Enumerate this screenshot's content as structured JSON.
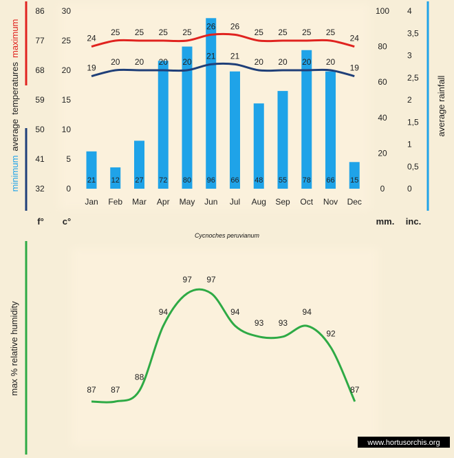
{
  "chart_data": [
    {
      "type": "bar",
      "title": "Cycnoches peruvianum",
      "categories": [
        "Jan",
        "Feb",
        "Mar",
        "Apr",
        "May",
        "Jun",
        "Jul",
        "Aug",
        "Sep",
        "Oct",
        "Nov",
        "Dec"
      ],
      "series": [
        {
          "name": "average rainfall (mm.)",
          "type": "bar",
          "axis": "mm",
          "color": "#1fa3e8",
          "values": [
            21,
            12,
            27,
            72,
            80,
            96,
            66,
            48,
            55,
            78,
            66,
            15
          ]
        },
        {
          "name": "maximum average temperatures (c°)",
          "type": "line",
          "axis": "c",
          "color": "#e0231f",
          "values": [
            24,
            25,
            25,
            25,
            25,
            26,
            26,
            25,
            25,
            25,
            25,
            24
          ]
        },
        {
          "name": "minimum average temperatures (c°)",
          "type": "line",
          "axis": "c",
          "color": "#1f3f78",
          "values": [
            19,
            20,
            20,
            20,
            20,
            21,
            21,
            20,
            20,
            20,
            20,
            19
          ]
        }
      ],
      "axes": {
        "f": {
          "label": "f°",
          "ticks": [
            "86",
            "77",
            "68",
            "59",
            "50",
            "41",
            "32"
          ]
        },
        "c": {
          "label": "c°",
          "ticks": [
            "30",
            "25",
            "20",
            "15",
            "10",
            "5",
            "0"
          ],
          "ylim": [
            0,
            30
          ]
        },
        "mm": {
          "label": "mm.",
          "ticks": [
            "100",
            "80",
            "60",
            "40",
            "20",
            "0"
          ],
          "ylim": [
            0,
            100
          ]
        },
        "inc": {
          "label": "inc.",
          "ticks": [
            "4",
            "3,5",
            "3",
            "2,5",
            "2",
            "1,5",
            "1",
            "0,5",
            "0"
          ]
        }
      },
      "left_label": {
        "part1": "minimum",
        "part2": "average",
        "part3": "temperatures",
        "part4": "maximum"
      },
      "right_label": "average rainfall"
    },
    {
      "type": "line",
      "ylabel": "max % relative humidity",
      "color": "#2eaa45",
      "values": [
        87,
        87,
        88,
        94,
        97,
        97,
        94,
        93,
        93,
        94,
        92,
        87
      ]
    }
  ],
  "watermark": "www.hortusorchis.org",
  "colors": {
    "bar": "#1fa3e8",
    "max": "#e0231f",
    "min": "#1f3f78",
    "humidity": "#2eaa45",
    "background": "#f7eed8",
    "panel": "#fbf1dc"
  }
}
